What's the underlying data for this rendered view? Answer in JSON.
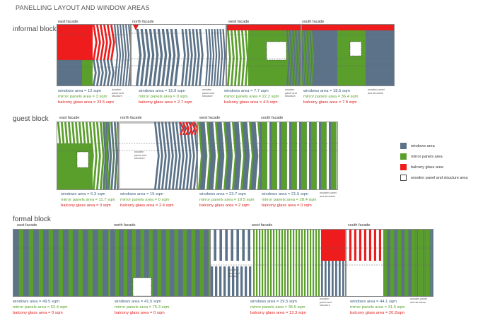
{
  "title": "PANELLING LAYOUT AND WINDOW AREAS",
  "colors": {
    "window": "#5b7288",
    "mirror": "#5a9e2c",
    "balcony": "#ee1c1c",
    "wood": "#ffffff"
  },
  "legend": [
    {
      "label": "windows area",
      "color": "#5b7288"
    },
    {
      "label": "mirror panels area",
      "color": "#5a9e2c"
    },
    {
      "label": "balcony glass area",
      "color": "#ee1c1c"
    },
    {
      "label": "wooden panel and structure area",
      "color": "#ffffff"
    }
  ],
  "blocks": [
    {
      "name": "informal block",
      "facades": [
        {
          "title": "east facade",
          "windows": "windows area = 12 sqm",
          "mirror": "mirror panels area = 3 sqm",
          "balcony": "balcony glass area = 23.5 sqm"
        },
        {
          "title": "north facade",
          "windows": "windows area = 15.9 sqm",
          "mirror": "mirror panels area = 0 sqm",
          "balcony": "balcony glass area = 2.7 sqm"
        },
        {
          "title": "west facade",
          "windows": "windows area = 7.7 sqm",
          "mirror": "mirror panels area = 22.2 sqm",
          "balcony": "balcony glass area = 4.5 sqm"
        },
        {
          "title": "south facade",
          "windows": "windows area = 18.5 sqm",
          "mirror": "mirror panels area = 36.4 sqm",
          "balcony": "balcony glass area = 7.8 sqm"
        }
      ]
    },
    {
      "name": "guest block",
      "facades": [
        {
          "title": "east facade",
          "windows": "windows area = 6.3 sqm",
          "mirror": "mirror panels area = 11.7 sqm",
          "balcony": "balcony glass area = 0 sqm"
        },
        {
          "title": "north facade",
          "windows": "windows area = 15 sqm",
          "mirror": "mirror panels area = 0 sqm",
          "balcony": "balcony glass area = 2.4 sqm"
        },
        {
          "title": "west facade",
          "windows": "windows area = 23.7 sqm",
          "mirror": "mirror panels area = 19.5 sqm",
          "balcony": "balcony glass area = 2 sqm"
        },
        {
          "title": "south facade",
          "windows": "windows area = 21.5 sqm",
          "mirror": "mirror panels area = 28.4 sqm",
          "balcony": "balcony glass area = 0 sqm"
        }
      ]
    },
    {
      "name": "formal block",
      "facades": [
        {
          "title": "east facade",
          "windows": "windows area = 49.5 sqm",
          "mirror": "mirror panels area = 52.4 sqm",
          "balcony": "balcony glass area = 0 sqm"
        },
        {
          "title": "north facade",
          "windows": "windows area = 41.5 sqm",
          "mirror": "mirror panels area = 75.3 sqm",
          "balcony": "balcony glass area = 0 sqm"
        },
        {
          "title": "west facade",
          "windows": "windows area = 29.5 sqm",
          "mirror": "mirror panels area = 35.5 sqm",
          "balcony": "balcony glass area = 13.3 sqm"
        },
        {
          "title": "south facade",
          "windows": "windows area = 44.1 sqm",
          "mirror": "mirror panels area = 31.5 sqm",
          "balcony": "balcony glass area = 20.2sqm"
        }
      ]
    }
  ],
  "notes": {
    "informal": [
      "wooden panel and structure",
      "wooden panel and structure",
      "wooden panel and structure",
      "wooden panel and structure"
    ],
    "guest": [
      "wooden panel and structure",
      "wooden panel and structure"
    ],
    "formal": [
      "wooden panel and structure",
      "wooden panel and structure",
      "wooden panel and structure"
    ]
  }
}
